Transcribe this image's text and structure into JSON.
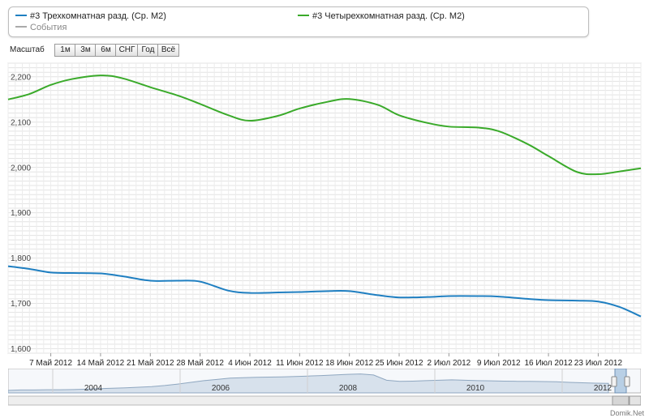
{
  "legend": {
    "series1": "#3 Трехкомнатная разд. (Ср. М2)",
    "series2": "#3 Четырехкомнатная разд. (Ср. М2)",
    "events": "События"
  },
  "zoom": {
    "label": "Масштаб",
    "buttons": [
      "1м",
      "3м",
      "6м",
      "СНГ",
      "Год",
      "Всё"
    ]
  },
  "watermark": "Domik.net",
  "footer": "Domik.Net",
  "colors": {
    "series1": "#1f7fc1",
    "series2": "#3aaa2a",
    "events": "#aaaaaa"
  },
  "chart_data": {
    "type": "line",
    "x_tick_labels": [
      "7 Май 2012",
      "14 Май 2012",
      "21 Май 2012",
      "28 Май 2012",
      "4 Июн 2012",
      "11 Июн 2012",
      "18 Июн 2012",
      "25 Июн 2012",
      "2 Июл 2012",
      "9 Июл 2012",
      "16 Июл 2012",
      "23 Июл 2012"
    ],
    "x_range": [
      "2012-05-01",
      "2012-07-29"
    ],
    "y_ticks": [
      "1,600",
      "1,700",
      "1,800",
      "1,900",
      "2,000",
      "2,100",
      "2,200"
    ],
    "ylim": [
      1600,
      2240
    ],
    "grid": true,
    "series": [
      {
        "name": "#3 Трехкомнатная разд. (Ср. М2)",
        "color": "#1f7fc1",
        "points": [
          [
            "2012-05-01",
            1792
          ],
          [
            "2012-05-04",
            1786
          ],
          [
            "2012-05-07",
            1778
          ],
          [
            "2012-05-10",
            1777
          ],
          [
            "2012-05-14",
            1776
          ],
          [
            "2012-05-17",
            1770
          ],
          [
            "2012-05-21",
            1760
          ],
          [
            "2012-05-25",
            1760
          ],
          [
            "2012-05-28",
            1758
          ],
          [
            "2012-06-01",
            1738
          ],
          [
            "2012-06-04",
            1733
          ],
          [
            "2012-06-08",
            1734
          ],
          [
            "2012-06-11",
            1735
          ],
          [
            "2012-06-15",
            1737
          ],
          [
            "2012-06-18",
            1737
          ],
          [
            "2012-06-22",
            1728
          ],
          [
            "2012-06-25",
            1723
          ],
          [
            "2012-06-29",
            1724
          ],
          [
            "2012-07-02",
            1726
          ],
          [
            "2012-07-06",
            1726
          ],
          [
            "2012-07-09",
            1725
          ],
          [
            "2012-07-13",
            1720
          ],
          [
            "2012-07-16",
            1717
          ],
          [
            "2012-07-20",
            1716
          ],
          [
            "2012-07-23",
            1714
          ],
          [
            "2012-07-26",
            1702
          ],
          [
            "2012-07-29",
            1681
          ]
        ]
      },
      {
        "name": "#3 Четырехкомнатная разд. (Ср. М2)",
        "color": "#3aaa2a",
        "points": [
          [
            "2012-05-01",
            2160
          ],
          [
            "2012-05-04",
            2172
          ],
          [
            "2012-05-07",
            2192
          ],
          [
            "2012-05-10",
            2205
          ],
          [
            "2012-05-14",
            2213
          ],
          [
            "2012-05-17",
            2207
          ],
          [
            "2012-05-21",
            2187
          ],
          [
            "2012-05-25",
            2168
          ],
          [
            "2012-05-28",
            2150
          ],
          [
            "2012-06-01",
            2125
          ],
          [
            "2012-06-04",
            2113
          ],
          [
            "2012-06-08",
            2124
          ],
          [
            "2012-06-11",
            2140
          ],
          [
            "2012-06-15",
            2155
          ],
          [
            "2012-06-18",
            2161
          ],
          [
            "2012-06-22",
            2148
          ],
          [
            "2012-06-25",
            2125
          ],
          [
            "2012-06-29",
            2108
          ],
          [
            "2012-07-02",
            2100
          ],
          [
            "2012-07-06",
            2098
          ],
          [
            "2012-07-09",
            2090
          ],
          [
            "2012-07-13",
            2062
          ],
          [
            "2012-07-16",
            2035
          ],
          [
            "2012-07-20",
            2000
          ],
          [
            "2012-07-23",
            1995
          ],
          [
            "2012-07-26",
            2001
          ],
          [
            "2012-07-29",
            2008
          ]
        ]
      }
    ]
  },
  "navigator": {
    "labels": [
      "2004",
      "2006",
      "2008",
      "2010",
      "2012"
    ],
    "area_values": [
      0.12,
      0.14,
      0.14,
      0.15,
      0.15,
      0.16,
      0.18,
      0.2,
      0.22,
      0.24,
      0.27,
      0.3,
      0.35,
      0.42,
      0.5,
      0.58,
      0.64,
      0.7,
      0.72,
      0.74,
      0.75,
      0.76,
      0.78,
      0.8,
      0.82,
      0.85,
      0.88,
      0.9,
      0.85,
      0.6,
      0.55,
      0.56,
      0.58,
      0.6,
      0.62,
      0.6,
      0.58,
      0.57,
      0.56,
      0.55,
      0.55,
      0.54,
      0.53,
      0.5,
      0.48,
      0.46,
      0.45
    ]
  }
}
